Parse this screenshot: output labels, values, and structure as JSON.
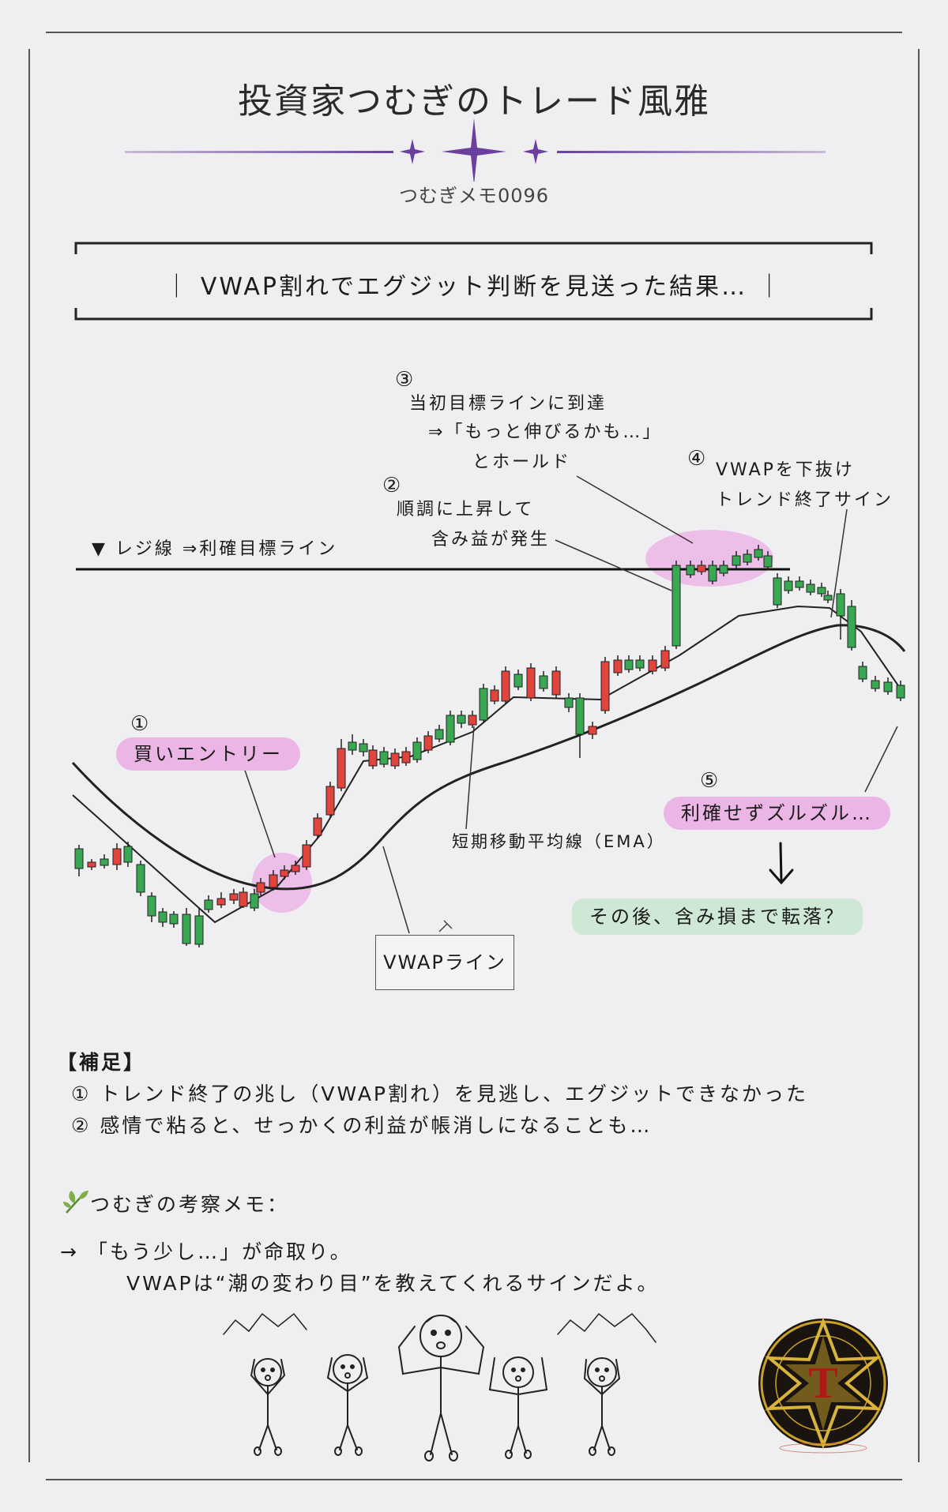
{
  "header": {
    "title": "投資家つむぎのトレード風雅",
    "subtitle": "つむぎメモ0096"
  },
  "headline": "｜ VWAP割れでエグジット判断を見送った結果… ｜",
  "chart": {
    "resistance_label": "▼ レジ線 ⇒利確目標ライン",
    "annotations": {
      "a1_num": "①",
      "a1_label": "買いエントリー",
      "a2_num": "②",
      "a2_line1": "順調に上昇して",
      "a2_line2": "含み益が発生",
      "a3_num": "③",
      "a3_line1": "当初目標ラインに到達",
      "a3_line2": "⇒「もっと伸びるかも…」",
      "a3_line3": "とホールド",
      "a4_num": "④",
      "a4_line1": "VWAPを下抜け",
      "a4_line2": "トレンド終了サイン",
      "a5_num": "⑤",
      "a5_label": "利確せずズルズル…",
      "ema_label": "短期移動平均線（EMA）",
      "vwap_label": "VWAPライン",
      "after_label": "その後、含み損まで転落？"
    },
    "colors": {
      "up": "#e0443c",
      "down": "#3aa753",
      "highlight": "#ebb5e6",
      "accent": "#6b3fa0"
    }
  },
  "notes": {
    "heading": "【補足】",
    "item1": "① トレンド終了の兆し（VWAP割れ）を見逃し、エグジットできなかった",
    "item2": "② 感情で粘ると、せっかくの利益が帳消しになることも…",
    "memo_heading": "つむぎの考察メモ：",
    "memo_line1": "→ 「もう少し…」が命取り。",
    "memo_line2": "VWAPは“潮の変わり目”を教えてくれるサインだよ。"
  },
  "icons": [
    "sparkle-icon",
    "leaf-icon",
    "pin-icon",
    "stick-figure-icon",
    "emblem-logo-icon"
  ]
}
